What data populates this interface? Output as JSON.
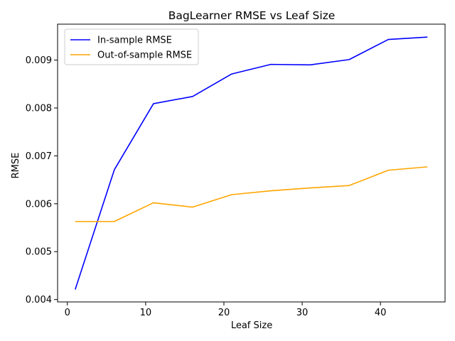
{
  "chart_data": {
    "type": "line",
    "title": "BagLearner RMSE vs Leaf Size",
    "xlabel": "Leaf Size",
    "ylabel": "RMSE",
    "xlim": [
      -1.25,
      48.25
    ],
    "ylim": [
      0.00395,
      0.00975
    ],
    "x_ticks": [
      0,
      10,
      20,
      30,
      40
    ],
    "y_ticks": [
      0.004,
      0.005,
      0.006,
      0.007,
      0.008,
      0.009
    ],
    "x_tick_labels": [
      "0",
      "10",
      "20",
      "30",
      "40"
    ],
    "y_tick_labels": [
      "0.004",
      "0.005",
      "0.006",
      "0.007",
      "0.008",
      "0.009"
    ],
    "grid": false,
    "legend_position": "top-left",
    "x": [
      1,
      6,
      11,
      16,
      21,
      26,
      31,
      36,
      41,
      46
    ],
    "series": [
      {
        "name": "In-sample RMSE",
        "color": "#0000ff",
        "values": [
          0.00421,
          0.00671,
          0.00809,
          0.00824,
          0.00871,
          0.00891,
          0.0089,
          0.00901,
          0.00943,
          0.00948
        ]
      },
      {
        "name": "Out-of-sample RMSE",
        "color": "#ffa500",
        "values": [
          0.00563,
          0.00563,
          0.00602,
          0.00593,
          0.00619,
          0.00627,
          0.00633,
          0.00638,
          0.0067,
          0.00677
        ]
      }
    ]
  }
}
